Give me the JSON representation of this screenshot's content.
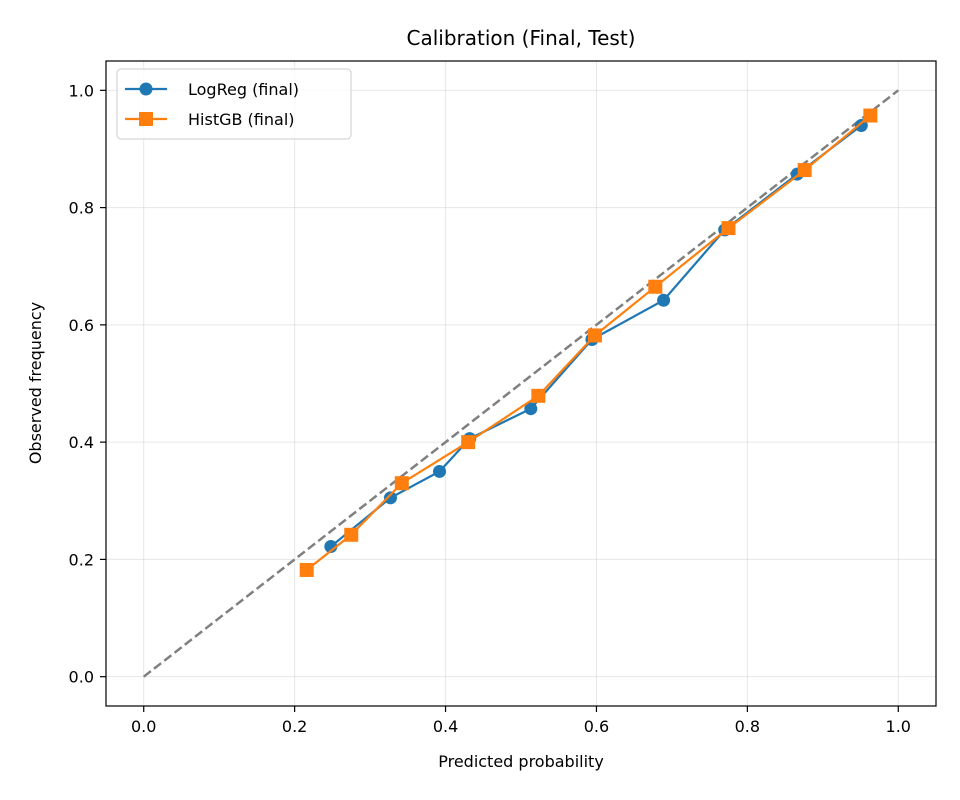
{
  "chart_data": {
    "type": "line",
    "title": "Calibration (Final, Test)",
    "xlabel": "Predicted probability",
    "ylabel": "Observed frequency",
    "xlim": [
      -0.05,
      1.05
    ],
    "ylim": [
      -0.05,
      1.05
    ],
    "xticks": [
      "0.0",
      "0.2",
      "0.4",
      "0.6",
      "0.8",
      "1.0"
    ],
    "yticks": [
      "0.0",
      "0.2",
      "0.4",
      "0.6",
      "0.8",
      "1.0"
    ],
    "grid": true,
    "legend_position": "top-left",
    "reference_line": {
      "x": [
        0,
        1
      ],
      "y": [
        0,
        1
      ],
      "color": "#808080",
      "style": "dashed"
    },
    "series": [
      {
        "name": "LogReg (final)",
        "color": "#1f77b4",
        "marker": "circle",
        "x": [
          0.248,
          0.327,
          0.392,
          0.432,
          0.513,
          0.594,
          0.689,
          0.77,
          0.866,
          0.951
        ],
        "y": [
          0.222,
          0.305,
          0.35,
          0.406,
          0.457,
          0.575,
          0.642,
          0.762,
          0.857,
          0.94
        ]
      },
      {
        "name": "HistGB (final)",
        "color": "#ff7f0e",
        "marker": "square",
        "x": [
          0.216,
          0.275,
          0.342,
          0.43,
          0.523,
          0.598,
          0.678,
          0.775,
          0.876,
          0.963
        ],
        "y": [
          0.182,
          0.242,
          0.33,
          0.4,
          0.479,
          0.582,
          0.665,
          0.765,
          0.864,
          0.957
        ]
      }
    ]
  }
}
